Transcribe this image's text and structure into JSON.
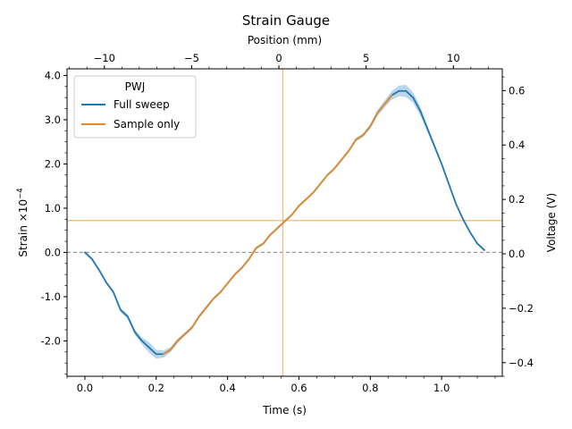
{
  "chart_data": {
    "type": "line",
    "title": "Strain Gauge",
    "xlabel": "Time (s)",
    "ylabel": "Strain ×10",
    "ylabel_exponent": "−4",
    "top_xlabel": "Position (mm)",
    "right_ylabel": "Voltage (V)",
    "xlim": [
      -0.05,
      1.17
    ],
    "ylim": [
      -2.8,
      4.15
    ],
    "top_xlim": [
      -12.14,
      12.8
    ],
    "right_ylim": [
      -0.45,
      0.68
    ],
    "x_ticks": [
      {
        "value": 0.0,
        "label": "0.0"
      },
      {
        "value": 0.2,
        "label": "0.2"
      },
      {
        "value": 0.4,
        "label": "0.4"
      },
      {
        "value": 0.6,
        "label": "0.6"
      },
      {
        "value": 0.8,
        "label": "0.8"
      },
      {
        "value": 1.0,
        "label": "1.0"
      }
    ],
    "y_ticks": [
      {
        "value": -2.0,
        "label": "-2.0"
      },
      {
        "value": -1.0,
        "label": "-1.0"
      },
      {
        "value": 0.0,
        "label": "0.0"
      },
      {
        "value": 1.0,
        "label": "1.0"
      },
      {
        "value": 2.0,
        "label": "2.0"
      },
      {
        "value": 3.0,
        "label": "3.0"
      },
      {
        "value": 4.0,
        "label": "4.0"
      }
    ],
    "top_x_ticks": [
      {
        "value": -10,
        "label": "−10"
      },
      {
        "value": -5,
        "label": "−5"
      },
      {
        "value": 0,
        "label": "0"
      },
      {
        "value": 5,
        "label": "5"
      },
      {
        "value": 10,
        "label": "10"
      }
    ],
    "right_y_ticks": [
      {
        "value": -0.4,
        "label": "−0.4"
      },
      {
        "value": -0.2,
        "label": "−0.2"
      },
      {
        "value": 0.0,
        "label": "0.0"
      },
      {
        "value": 0.2,
        "label": "0.2"
      },
      {
        "value": 0.4,
        "label": "0.4"
      },
      {
        "value": 0.6,
        "label": "0.6"
      }
    ],
    "legend": {
      "title": "PWJ",
      "position": "top-left"
    },
    "series": [
      {
        "name": "Full sweep",
        "color": "#1f77b4",
        "band_color": "#1f77b4",
        "x": [
          0.0,
          0.02,
          0.04,
          0.06,
          0.08,
          0.1,
          0.12,
          0.14,
          0.16,
          0.18,
          0.2,
          0.22,
          0.24,
          0.26,
          0.28,
          0.3,
          0.32,
          0.34,
          0.36,
          0.38,
          0.4,
          0.42,
          0.44,
          0.46,
          0.48,
          0.5,
          0.52,
          0.54,
          0.56,
          0.58,
          0.6,
          0.62,
          0.64,
          0.66,
          0.68,
          0.7,
          0.72,
          0.74,
          0.76,
          0.78,
          0.8,
          0.82,
          0.84,
          0.86,
          0.88,
          0.9,
          0.92,
          0.94,
          0.96,
          0.98,
          1.0,
          1.02,
          1.04,
          1.06,
          1.08,
          1.1,
          1.12
        ],
        "values": [
          0.0,
          -0.15,
          -0.4,
          -0.68,
          -0.9,
          -1.3,
          -1.45,
          -1.8,
          -2.0,
          -2.15,
          -2.3,
          -2.3,
          -2.2,
          -2.0,
          -1.85,
          -1.7,
          -1.45,
          -1.25,
          -1.05,
          -0.9,
          -0.7,
          -0.5,
          -0.35,
          -0.15,
          0.1,
          0.2,
          0.4,
          0.55,
          0.7,
          0.85,
          1.05,
          1.2,
          1.35,
          1.55,
          1.75,
          1.9,
          2.1,
          2.3,
          2.55,
          2.65,
          2.85,
          3.15,
          3.35,
          3.55,
          3.65,
          3.65,
          3.5,
          3.2,
          2.8,
          2.4,
          2.0,
          1.55,
          1.1,
          0.75,
          0.45,
          0.2,
          0.05
        ],
        "band": [
          0.03,
          0.03,
          0.03,
          0.03,
          0.04,
          0.05,
          0.05,
          0.06,
          0.08,
          0.12,
          0.1,
          0.08,
          0.06,
          0.05,
          0.04,
          0.04,
          0.04,
          0.04,
          0.03,
          0.03,
          0.03,
          0.03,
          0.03,
          0.03,
          0.03,
          0.03,
          0.03,
          0.03,
          0.03,
          0.03,
          0.03,
          0.03,
          0.03,
          0.03,
          0.03,
          0.03,
          0.03,
          0.04,
          0.04,
          0.04,
          0.05,
          0.07,
          0.08,
          0.1,
          0.12,
          0.14,
          0.12,
          0.1,
          0.07,
          0.05,
          0.04,
          0.04,
          0.03,
          0.03,
          0.03,
          0.03,
          0.03
        ]
      },
      {
        "name": "Sample only",
        "color": "#e6892b",
        "x": [
          0.22,
          0.24,
          0.26,
          0.28,
          0.3,
          0.32,
          0.34,
          0.36,
          0.38,
          0.4,
          0.42,
          0.44,
          0.46,
          0.48,
          0.5,
          0.52,
          0.54,
          0.56,
          0.58,
          0.6,
          0.62,
          0.64,
          0.66,
          0.68,
          0.7,
          0.72,
          0.74,
          0.76,
          0.78,
          0.8,
          0.82,
          0.84,
          0.86
        ],
        "values": [
          -2.3,
          -2.2,
          -2.0,
          -1.85,
          -1.7,
          -1.45,
          -1.25,
          -1.05,
          -0.9,
          -0.7,
          -0.5,
          -0.35,
          -0.15,
          0.1,
          0.2,
          0.4,
          0.55,
          0.7,
          0.85,
          1.05,
          1.2,
          1.35,
          1.55,
          1.75,
          1.9,
          2.1,
          2.3,
          2.55,
          2.65,
          2.85,
          3.15,
          3.35,
          3.55
        ]
      }
    ],
    "reference_lines": [
      {
        "orientation": "horizontal",
        "y": 0.0,
        "style": "dashed",
        "color": "#999999"
      },
      {
        "orientation": "horizontal",
        "y": 0.72,
        "style": "solid",
        "color": "#f5b97a"
      },
      {
        "orientation": "vertical",
        "x": 0.555,
        "style": "solid",
        "color": "#f5b97a"
      }
    ],
    "grid": false
  }
}
